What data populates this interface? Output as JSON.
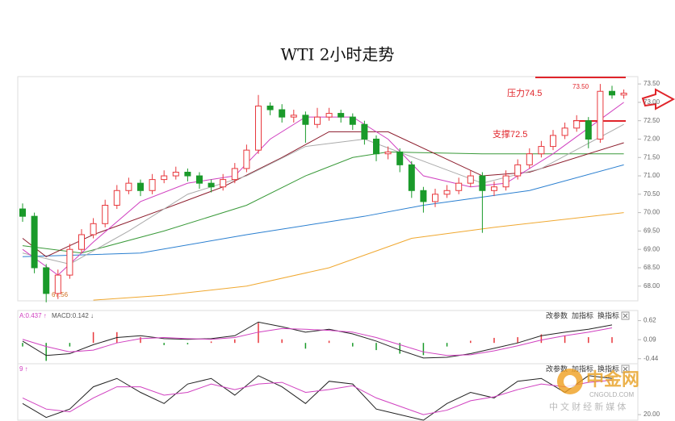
{
  "chart_data": [
    {
      "type": "candlestick",
      "title": "WTI 2小时走势",
      "up_color": "#e8383d",
      "down_color": "#1a9a2a",
      "open": [
        70.1,
        69.9,
        68.5,
        67.8,
        68.3,
        69.0,
        69.4,
        69.7,
        70.2,
        70.6,
        70.8,
        70.6,
        70.9,
        71.0,
        71.1,
        71.0,
        70.8,
        70.7,
        70.9,
        71.2,
        71.7,
        72.9,
        72.8,
        72.6,
        72.65,
        72.4,
        72.6,
        72.7,
        72.6,
        72.4,
        72.0,
        71.6,
        71.65,
        71.3,
        70.6,
        70.3,
        70.5,
        70.6,
        70.8,
        71.0,
        70.6,
        70.7,
        71.0,
        71.3,
        71.6,
        71.8,
        72.1,
        72.3,
        72.5,
        72.0,
        73.3,
        73.2
      ],
      "high": [
        70.25,
        70.0,
        68.6,
        68.45,
        69.15,
        69.55,
        69.85,
        70.35,
        70.75,
        70.95,
        70.9,
        71.05,
        71.15,
        71.25,
        71.2,
        71.1,
        70.9,
        71.05,
        71.35,
        71.85,
        73.2,
        73.0,
        72.95,
        72.8,
        72.75,
        72.85,
        72.85,
        72.8,
        72.7,
        72.5,
        72.1,
        71.8,
        71.75,
        71.4,
        70.7,
        70.65,
        70.75,
        70.95,
        71.15,
        71.1,
        70.85,
        71.15,
        71.45,
        71.75,
        71.95,
        72.25,
        72.45,
        72.65,
        72.6,
        73.5,
        73.45,
        73.35
      ],
      "low": [
        69.75,
        68.35,
        67.56,
        67.65,
        68.2,
        68.9,
        69.3,
        69.6,
        70.1,
        70.5,
        70.45,
        70.5,
        70.8,
        70.9,
        70.85,
        70.65,
        70.55,
        70.6,
        70.8,
        71.1,
        71.6,
        72.65,
        72.45,
        72.45,
        71.9,
        72.3,
        72.5,
        72.45,
        72.25,
        71.85,
        71.4,
        71.45,
        71.1,
        70.4,
        70.0,
        70.15,
        70.4,
        70.5,
        70.7,
        69.45,
        70.45,
        70.6,
        70.9,
        71.2,
        71.5,
        71.7,
        72.0,
        72.2,
        71.75,
        71.9,
        73.1,
        73.1
      ],
      "close": [
        69.9,
        68.5,
        67.8,
        68.3,
        69.0,
        69.4,
        69.7,
        70.2,
        70.6,
        70.8,
        70.6,
        70.9,
        71.0,
        71.1,
        71.0,
        70.8,
        70.7,
        70.9,
        71.2,
        71.7,
        72.9,
        72.8,
        72.6,
        72.65,
        72.4,
        72.6,
        72.7,
        72.6,
        72.4,
        72.0,
        71.6,
        71.65,
        71.3,
        70.6,
        70.3,
        70.5,
        70.6,
        70.8,
        71.0,
        70.6,
        70.7,
        71.0,
        71.3,
        71.6,
        71.8,
        72.1,
        72.3,
        72.5,
        72.0,
        73.3,
        73.2,
        73.25
      ],
      "series": [
        {
          "color": "#f0a830",
          "x": [
            6,
            12,
            19,
            26,
            33,
            40,
            51
          ],
          "values": [
            67.62,
            67.75,
            68.0,
            68.5,
            69.3,
            69.6,
            70.0
          ]
        },
        {
          "color": "#2a7fd0",
          "x": [
            0,
            10,
            19,
            29,
            34,
            43,
            51
          ],
          "values": [
            68.8,
            68.9,
            69.4,
            69.9,
            70.2,
            70.6,
            71.3
          ]
        },
        {
          "color": "#3a9a3a",
          "x": [
            0,
            5,
            12,
            19,
            24,
            28,
            31,
            39,
            51
          ],
          "values": [
            69.1,
            68.9,
            69.5,
            70.2,
            71.0,
            71.5,
            71.65,
            71.6,
            71.6
          ]
        },
        {
          "color": "#8b1a2a",
          "x": [
            0,
            2,
            6,
            12,
            17,
            22,
            26,
            31,
            35,
            39,
            43,
            51
          ],
          "values": [
            69.3,
            68.8,
            69.4,
            70.1,
            70.7,
            71.5,
            72.2,
            72.2,
            71.6,
            71.0,
            71.1,
            71.9
          ]
        },
        {
          "color": "#aaaaaa",
          "x": [
            0,
            4,
            9,
            14,
            19,
            24,
            29,
            34,
            39,
            44,
            51
          ],
          "values": [
            68.9,
            68.6,
            69.5,
            70.5,
            71.0,
            71.8,
            72.0,
            71.4,
            70.8,
            71.2,
            72.4
          ]
        },
        {
          "color": "#d040c0",
          "x": [
            0,
            3,
            6,
            10,
            14,
            18,
            21,
            24,
            28,
            31,
            34,
            38,
            41,
            45,
            48,
            51
          ],
          "values": [
            69.0,
            68.3,
            69.2,
            70.3,
            70.8,
            71.0,
            72.0,
            72.6,
            72.6,
            72.0,
            71.0,
            70.7,
            70.8,
            71.6,
            72.3,
            73.0
          ]
        }
      ],
      "ylim": [
        67.6,
        73.7
      ],
      "yticks": [
        {
          "value": 73.5,
          "label": "73.50"
        },
        {
          "value": 73,
          "label": "73.00"
        },
        {
          "value": 72.5,
          "label": "72.50"
        },
        {
          "value": 72,
          "label": "72.00"
        },
        {
          "value": 71.5,
          "label": "71.50"
        },
        {
          "value": 71,
          "label": "71.00"
        },
        {
          "value": 70.5,
          "label": "70.50"
        },
        {
          "value": 70,
          "label": "70.00"
        },
        {
          "value": 69.5,
          "label": "69.50"
        },
        {
          "value": 69,
          "label": "69.00"
        },
        {
          "value": 68.5,
          "label": "68.50"
        },
        {
          "value": 68,
          "label": "68.00"
        }
      ],
      "annotations": [
        "压力74.5",
        "支撑72.5",
        "73.50",
        "67.56"
      ]
    },
    {
      "type": "macd",
      "header": [
        "A:0.437 ↑",
        "MACD:0.142 ↓"
      ],
      "buttons": [
        "改参数",
        "加指标",
        "换指标"
      ],
      "x": [
        0,
        2,
        4,
        6,
        8,
        10,
        12,
        14,
        16,
        18,
        20,
        22,
        24,
        26,
        28,
        30,
        32,
        34,
        36,
        38,
        40,
        42,
        44,
        46,
        48,
        50
      ],
      "dif": [
        0.05,
        -0.35,
        -0.3,
        -0.05,
        0.15,
        0.2,
        0.12,
        0.1,
        0.12,
        0.2,
        0.58,
        0.45,
        0.3,
        0.38,
        0.25,
        0.05,
        -0.2,
        -0.42,
        -0.4,
        -0.3,
        -0.15,
        0.0,
        0.2,
        0.3,
        0.38,
        0.5
      ],
      "dea": [
        0.1,
        -0.1,
        -0.25,
        -0.2,
        0.0,
        0.12,
        0.15,
        0.12,
        0.1,
        0.15,
        0.3,
        0.4,
        0.38,
        0.35,
        0.3,
        0.15,
        -0.05,
        -0.25,
        -0.35,
        -0.33,
        -0.22,
        -0.08,
        0.08,
        0.2,
        0.3,
        0.42
      ],
      "hist": [
        -0.1,
        -0.5,
        -0.1,
        0.3,
        0.3,
        0.16,
        -0.06,
        -0.04,
        0.04,
        0.1,
        0.56,
        0.1,
        -0.16,
        0.06,
        -0.1,
        -0.2,
        -0.3,
        -0.34,
        -0.1,
        0.06,
        0.14,
        0.16,
        0.24,
        0.2,
        0.16,
        0.16
      ],
      "colors": [
        "#222222",
        "#d040c0",
        "#e8383d",
        "#1a9a2a"
      ],
      "ylim": [
        -0.58,
        0.88
      ],
      "yticks": [
        0.62,
        0.09,
        -0.44
      ]
    },
    {
      "type": "kdj",
      "header": [
        "9 ↑"
      ],
      "buttons": [
        "改参数",
        "加指标",
        "换指标"
      ],
      "x": [
        0,
        2,
        4,
        6,
        8,
        10,
        12,
        14,
        16,
        18,
        20,
        22,
        24,
        26,
        28,
        30,
        32,
        34,
        36,
        38,
        40,
        42,
        44,
        46,
        48,
        50
      ],
      "k": [
        40,
        15,
        30,
        70,
        85,
        60,
        40,
        75,
        85,
        55,
        90,
        70,
        40,
        80,
        75,
        30,
        20,
        10,
        40,
        60,
        50,
        80,
        85,
        60,
        90,
        85
      ],
      "d": [
        50,
        30,
        25,
        50,
        70,
        70,
        55,
        60,
        75,
        65,
        75,
        78,
        60,
        65,
        72,
        50,
        35,
        20,
        28,
        45,
        52,
        65,
        75,
        70,
        78,
        82
      ],
      "colors": [
        "#222222",
        "#d040c0"
      ],
      "ylim": [
        10,
        110
      ],
      "yticks": [
        {
          "value": 20,
          "label": "20.00"
        }
      ]
    }
  ],
  "watermark": {
    "logo": "中金网",
    "site": "CNGOLD.COM",
    "slogan": "中 文 财 经 新 媒 体"
  }
}
